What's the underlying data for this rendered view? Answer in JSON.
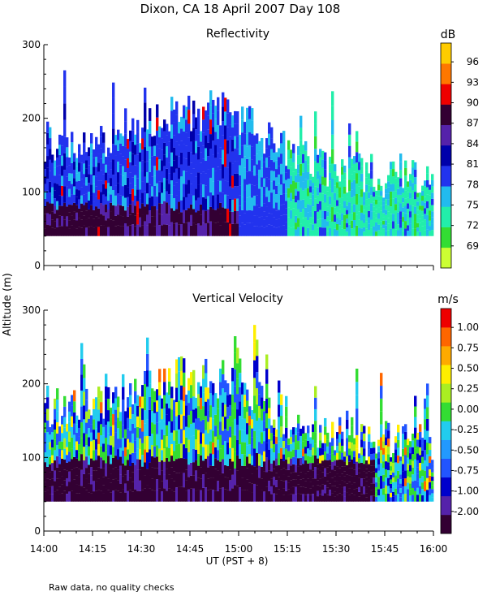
{
  "title": "Dixon, CA 18 April 2007  Day 108",
  "ylabel": "Altitude (m)",
  "xlabel": "UT  (PST + 8)",
  "footnote": "Raw data, no quality checks",
  "x_ticks": [
    "14:00",
    "14:15",
    "14:30",
    "14:45",
    "15:00",
    "15:15",
    "15:30",
    "15:45",
    "16:00"
  ],
  "y_ticks": [
    "0",
    "100",
    "200",
    "300"
  ],
  "colors": {
    "reflectivity_scale": [
      "#ccff33",
      "#33dd33",
      "#22eeaa",
      "#22bbee",
      "#2233ee",
      "#0000aa",
      "#5522aa",
      "#330033",
      "#ee0000",
      "#ff7700",
      "#ffcc00"
    ],
    "velocity_scale": [
      "#330033",
      "#5522aa",
      "#0000cc",
      "#2255ff",
      "#2299ff",
      "#22ccee",
      "#33dd33",
      "#aaee22",
      "#ffee00",
      "#ffaa00",
      "#ff6600",
      "#ee0000"
    ]
  },
  "chart_data": [
    {
      "type": "heatmap",
      "title": "Reflectivity",
      "xlabel": "UT  (PST + 8)",
      "ylabel": "Altitude (m)",
      "xlim": [
        "14:00",
        "16:00"
      ],
      "ylim": [
        0,
        300
      ],
      "colorbar": {
        "unit": "dB",
        "tick_labels": [
          "69",
          "72",
          "75",
          "78",
          "81",
          "84",
          "87",
          "90",
          "93",
          "96"
        ],
        "range": [
          68,
          98
        ]
      },
      "description_of_field": {
        "data_bottom_altitude_m": 40,
        "typical_top_altitude_m_by_hour": [
          {
            "time": "14:00",
            "top_m": 165
          },
          {
            "time": "14:15",
            "top_m": 165
          },
          {
            "time": "14:30",
            "top_m": 190
          },
          {
            "time": "14:45",
            "top_m": 205
          },
          {
            "time": "15:00",
            "top_m": 200
          },
          {
            "time": "15:15",
            "top_m": 145
          },
          {
            "time": "15:30",
            "top_m": 125
          },
          {
            "time": "15:45",
            "top_m": 115
          },
          {
            "time": "16:00",
            "top_m": 110
          }
        ],
        "max_top_altitude_m": 280,
        "dominant_dB_by_period": [
          {
            "period": "14:00-14:45 below 80 m",
            "dB": 86
          },
          {
            "period": "14:00-15:00 80-200 m",
            "dB": 82
          },
          {
            "period": "15:10-16:00",
            "dB": 76
          }
        ]
      }
    },
    {
      "type": "heatmap",
      "title": "Vertical Velocity",
      "xlabel": "UT  (PST + 8)",
      "ylabel": "Altitude (m)",
      "xlim": [
        "14:00",
        "16:00"
      ],
      "ylim": [
        0,
        300
      ],
      "colorbar": {
        "unit": "m/s",
        "tick_labels": [
          "-2.00",
          "-1.00",
          "-0.75",
          "-0.50",
          "-0.25",
          "0.00",
          "0.25",
          "0.50",
          "0.75",
          "1.00"
        ],
        "range": [
          -2.0,
          1.2
        ]
      },
      "description_of_field": {
        "data_bottom_altitude_m": 40,
        "max_top_altitude_m": 280,
        "dominant_velocity_below_100m_m_s": -2.0,
        "dominant_velocity_100_200m_m_s": -0.25
      }
    }
  ]
}
